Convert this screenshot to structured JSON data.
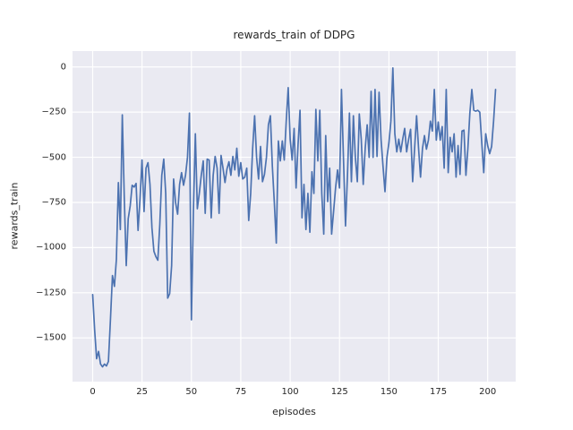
{
  "chart_data": {
    "type": "line",
    "title": "rewards_train of DDPG",
    "xlabel": "episodes",
    "ylabel": "rewards_train",
    "x_ticks": [
      0,
      25,
      50,
      75,
      100,
      125,
      150,
      175,
      200
    ],
    "y_ticks": [
      0,
      -250,
      -500,
      -750,
      -1000,
      -1250,
      -1500
    ],
    "xlim": [
      -10.2,
      214.2
    ],
    "ylim": [
      -1742,
      88
    ],
    "grid": true,
    "legend": null,
    "line_color": "#4C72B0",
    "background_color": "#EAEAF2",
    "grid_color": "#FFFFFF",
    "x_is_index": true,
    "values": [
      -1260,
      -1455,
      -1615,
      -1575,
      -1645,
      -1660,
      -1645,
      -1655,
      -1630,
      -1395,
      -1155,
      -1215,
      -1065,
      -640,
      -900,
      -265,
      -720,
      -1100,
      -840,
      -770,
      -655,
      -665,
      -645,
      -905,
      -730,
      -515,
      -800,
      -560,
      -530,
      -650,
      -890,
      -1020,
      -1050,
      -1070,
      -870,
      -600,
      -510,
      -700,
      -1280,
      -1255,
      -1100,
      -620,
      -750,
      -815,
      -650,
      -585,
      -655,
      -600,
      -500,
      -255,
      -1400,
      -800,
      -370,
      -785,
      -700,
      -600,
      -520,
      -810,
      -510,
      -515,
      -835,
      -600,
      -495,
      -560,
      -810,
      -490,
      -560,
      -640,
      -565,
      -525,
      -600,
      -495,
      -570,
      -450,
      -605,
      -530,
      -620,
      -610,
      -560,
      -850,
      -700,
      -450,
      -270,
      -500,
      -620,
      -440,
      -635,
      -595,
      -500,
      -320,
      -270,
      -550,
      -750,
      -975,
      -410,
      -520,
      -410,
      -515,
      -300,
      -115,
      -400,
      -515,
      -340,
      -670,
      -430,
      -240,
      -835,
      -650,
      -900,
      -700,
      -915,
      -580,
      -700,
      -235,
      -520,
      -240,
      -700,
      -925,
      -380,
      -745,
      -560,
      -925,
      -800,
      -670,
      -570,
      -670,
      -125,
      -500,
      -880,
      -600,
      -255,
      -635,
      -270,
      -500,
      -635,
      -260,
      -400,
      -650,
      -450,
      -320,
      -500,
      -135,
      -500,
      -125,
      -495,
      -140,
      -400,
      -550,
      -690,
      -500,
      -420,
      -300,
      -5,
      -370,
      -470,
      -400,
      -470,
      -400,
      -340,
      -470,
      -400,
      -345,
      -635,
      -450,
      -270,
      -450,
      -610,
      -450,
      -380,
      -455,
      -405,
      -300,
      -355,
      -125,
      -405,
      -305,
      -405,
      -330,
      -560,
      -125,
      -585,
      -390,
      -470,
      -370,
      -610,
      -435,
      -595,
      -355,
      -350,
      -600,
      -450,
      -255,
      -125,
      -240,
      -245,
      -240,
      -250,
      -420,
      -585,
      -370,
      -435,
      -480,
      -440,
      -300,
      -125
    ]
  }
}
